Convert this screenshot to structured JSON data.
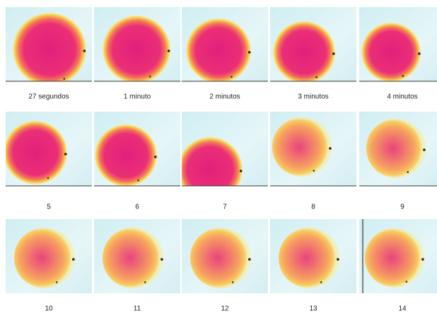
{
  "panels": {
    "labels": [
      "27 segundos",
      "1 minuto",
      "2 minutos",
      "3 minutos",
      "4 minutos",
      "5",
      "6",
      "7",
      "8",
      "9",
      "10",
      "11",
      "12",
      "13",
      "14"
    ]
  }
}
